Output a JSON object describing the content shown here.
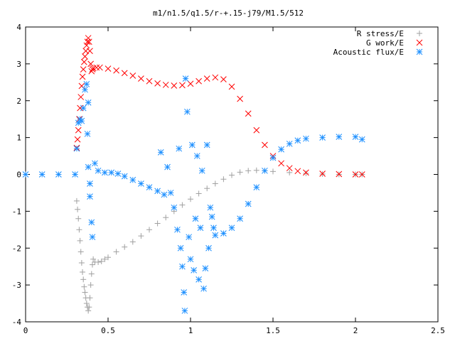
{
  "chart_data": {
    "type": "scatter",
    "title": "m1/n1.5/q1.5/r-+.15-j79/M1.5/512",
    "xlabel": "",
    "ylabel": "",
    "xlim": [
      0,
      2.5
    ],
    "ylim": [
      -4,
      4
    ],
    "x_ticks": [
      0,
      0.5,
      1,
      1.5,
      2,
      2.5
    ],
    "x_tick_labels": [
      "0",
      "0.5",
      "1",
      "1.5",
      "2",
      "2.5"
    ],
    "y_ticks": [
      -4,
      -3,
      -2,
      -1,
      0,
      1,
      2,
      3,
      4
    ],
    "y_tick_labels": [
      "-4",
      "-3",
      "-2",
      "-1",
      "0",
      "1",
      "2",
      "3",
      "4"
    ],
    "grid": false,
    "legend_position": "top-right",
    "series": [
      {
        "name": "R stress/E",
        "marker": "plus",
        "color": "#a0a0a0",
        "points": [
          [
            0.31,
            -0.72
          ],
          [
            0.315,
            -0.95
          ],
          [
            0.32,
            -1.2
          ],
          [
            0.325,
            -1.5
          ],
          [
            0.33,
            -1.8
          ],
          [
            0.335,
            -2.1
          ],
          [
            0.34,
            -2.4
          ],
          [
            0.345,
            -2.65
          ],
          [
            0.35,
            -2.85
          ],
          [
            0.355,
            -3.05
          ],
          [
            0.36,
            -3.2
          ],
          [
            0.365,
            -3.35
          ],
          [
            0.37,
            -3.5
          ],
          [
            0.375,
            -3.6
          ],
          [
            0.38,
            -3.7
          ],
          [
            0.385,
            -3.6
          ],
          [
            0.39,
            -3.35
          ],
          [
            0.395,
            -3.0
          ],
          [
            0.4,
            -2.7
          ],
          [
            0.405,
            -2.45
          ],
          [
            0.41,
            -2.3
          ],
          [
            0.42,
            -2.38
          ],
          [
            0.44,
            -2.38
          ],
          [
            0.46,
            -2.36
          ],
          [
            0.48,
            -2.3
          ],
          [
            0.5,
            -2.25
          ],
          [
            0.55,
            -2.1
          ],
          [
            0.6,
            -1.97
          ],
          [
            0.65,
            -1.83
          ],
          [
            0.7,
            -1.67
          ],
          [
            0.75,
            -1.5
          ],
          [
            0.8,
            -1.33
          ],
          [
            0.85,
            -1.17
          ],
          [
            0.9,
            -1.0
          ],
          [
            0.95,
            -0.83
          ],
          [
            1.0,
            -0.67
          ],
          [
            1.05,
            -0.52
          ],
          [
            1.1,
            -0.38
          ],
          [
            1.15,
            -0.25
          ],
          [
            1.2,
            -0.13
          ],
          [
            1.25,
            -0.02
          ],
          [
            1.3,
            0.06
          ],
          [
            1.35,
            0.1
          ],
          [
            1.4,
            0.11
          ],
          [
            1.45,
            0.1
          ],
          [
            1.5,
            0.08
          ],
          [
            1.6,
            0.05
          ],
          [
            1.7,
            0.03
          ],
          [
            1.8,
            0.01
          ],
          [
            1.9,
            0.0
          ],
          [
            2.0,
            0.0
          ],
          [
            2.04,
            0.0
          ]
        ]
      },
      {
        "name": "G work/E",
        "marker": "cross",
        "color": "#ff0000",
        "points": [
          [
            0.31,
            0.72
          ],
          [
            0.315,
            0.95
          ],
          [
            0.32,
            1.2
          ],
          [
            0.325,
            1.5
          ],
          [
            0.33,
            1.8
          ],
          [
            0.335,
            2.1
          ],
          [
            0.34,
            2.4
          ],
          [
            0.345,
            2.65
          ],
          [
            0.35,
            2.85
          ],
          [
            0.355,
            3.05
          ],
          [
            0.36,
            3.2
          ],
          [
            0.365,
            3.35
          ],
          [
            0.37,
            3.5
          ],
          [
            0.375,
            3.6
          ],
          [
            0.38,
            3.7
          ],
          [
            0.385,
            3.6
          ],
          [
            0.39,
            3.35
          ],
          [
            0.395,
            3.0
          ],
          [
            0.4,
            2.8
          ],
          [
            0.405,
            2.85
          ],
          [
            0.41,
            2.88
          ],
          [
            0.43,
            2.9
          ],
          [
            0.45,
            2.9
          ],
          [
            0.5,
            2.87
          ],
          [
            0.55,
            2.82
          ],
          [
            0.6,
            2.75
          ],
          [
            0.65,
            2.68
          ],
          [
            0.7,
            2.6
          ],
          [
            0.75,
            2.53
          ],
          [
            0.8,
            2.47
          ],
          [
            0.85,
            2.43
          ],
          [
            0.9,
            2.41
          ],
          [
            0.95,
            2.42
          ],
          [
            1.0,
            2.46
          ],
          [
            1.05,
            2.53
          ],
          [
            1.1,
            2.6
          ],
          [
            1.15,
            2.63
          ],
          [
            1.2,
            2.58
          ],
          [
            1.25,
            2.38
          ],
          [
            1.3,
            2.05
          ],
          [
            1.35,
            1.65
          ],
          [
            1.4,
            1.2
          ],
          [
            1.45,
            0.8
          ],
          [
            1.5,
            0.5
          ],
          [
            1.55,
            0.3
          ],
          [
            1.6,
            0.17
          ],
          [
            1.65,
            0.09
          ],
          [
            1.7,
            0.05
          ],
          [
            1.8,
            0.02
          ],
          [
            1.9,
            0.01
          ],
          [
            2.0,
            0.0
          ],
          [
            2.04,
            0.0
          ]
        ]
      },
      {
        "name": "Acoustic flux/E",
        "marker": "star",
        "color": "#1e90ff",
        "points": [
          [
            0.0,
            0.0
          ],
          [
            0.1,
            0.0
          ],
          [
            0.2,
            0.0
          ],
          [
            0.3,
            0.0
          ],
          [
            0.31,
            0.7
          ],
          [
            0.32,
            1.4
          ],
          [
            0.33,
            1.5
          ],
          [
            0.34,
            1.45
          ],
          [
            0.35,
            1.8
          ],
          [
            0.36,
            2.3
          ],
          [
            0.37,
            2.45
          ],
          [
            0.38,
            1.95
          ],
          [
            0.375,
            1.1
          ],
          [
            0.38,
            0.2
          ],
          [
            0.39,
            -0.6
          ],
          [
            0.4,
            -1.3
          ],
          [
            0.405,
            -1.7
          ],
          [
            0.39,
            -0.25
          ],
          [
            0.42,
            0.3
          ],
          [
            0.44,
            0.1
          ],
          [
            0.48,
            0.05
          ],
          [
            0.52,
            0.05
          ],
          [
            0.56,
            0.02
          ],
          [
            0.6,
            -0.05
          ],
          [
            0.65,
            -0.15
          ],
          [
            0.7,
            -0.25
          ],
          [
            0.75,
            -0.35
          ],
          [
            0.8,
            -0.45
          ],
          [
            0.82,
            0.6
          ],
          [
            0.84,
            -0.55
          ],
          [
            0.86,
            0.2
          ],
          [
            0.88,
            -0.5
          ],
          [
            0.9,
            -0.9
          ],
          [
            0.92,
            -1.5
          ],
          [
            0.93,
            0.7
          ],
          [
            0.94,
            -2.0
          ],
          [
            0.95,
            -2.5
          ],
          [
            0.96,
            -3.2
          ],
          [
            0.965,
            -3.7
          ],
          [
            0.97,
            2.6
          ],
          [
            0.98,
            1.7
          ],
          [
            0.99,
            -1.7
          ],
          [
            1.0,
            -2.3
          ],
          [
            1.01,
            0.8
          ],
          [
            1.02,
            -2.6
          ],
          [
            1.03,
            -1.2
          ],
          [
            1.04,
            0.5
          ],
          [
            1.05,
            -2.85
          ],
          [
            1.06,
            -1.45
          ],
          [
            1.07,
            0.1
          ],
          [
            1.08,
            -3.1
          ],
          [
            1.09,
            -2.55
          ],
          [
            1.1,
            0.8
          ],
          [
            1.11,
            -2.0
          ],
          [
            1.12,
            -0.9
          ],
          [
            1.13,
            -1.15
          ],
          [
            1.14,
            -1.45
          ],
          [
            1.15,
            -1.65
          ],
          [
            1.2,
            -1.6
          ],
          [
            1.25,
            -1.45
          ],
          [
            1.3,
            -1.2
          ],
          [
            1.35,
            -0.8
          ],
          [
            1.4,
            -0.35
          ],
          [
            1.45,
            0.1
          ],
          [
            1.5,
            0.45
          ],
          [
            1.55,
            0.68
          ],
          [
            1.6,
            0.83
          ],
          [
            1.65,
            0.92
          ],
          [
            1.7,
            0.97
          ],
          [
            1.8,
            1.0
          ],
          [
            1.9,
            1.02
          ],
          [
            2.0,
            1.02
          ],
          [
            2.04,
            0.95
          ]
        ]
      }
    ]
  }
}
